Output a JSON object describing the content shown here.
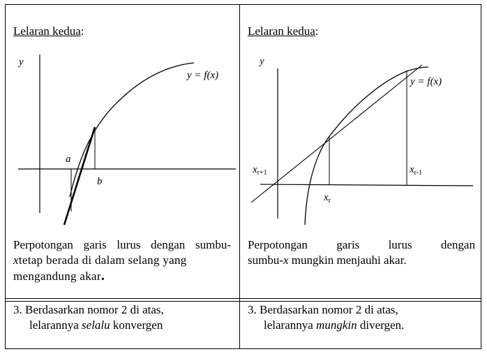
{
  "left": {
    "title": "Lelaran kedua",
    "title_colon": ":",
    "diagram": {
      "y_axis": "y",
      "curve_label": "y = f(x)",
      "point_a": "a",
      "point_b": "b"
    },
    "caption_line1": "Perpotongan garis lurus dengan sumbu-",
    "caption_line2_x": "x",
    "caption_line2_rest": "tetap berada di dalam selang yang",
    "caption_line3": "mengandung akar",
    "caption_line3_end": ".",
    "point3_line1": "3. Berdasarkan nomor 2 di atas,",
    "point3_line2_pre": "lelarannya ",
    "point3_line2_em": "selalu",
    "point3_line2_post": " konvergen"
  },
  "right": {
    "title": "Lelaran kedua",
    "title_colon": ":",
    "diagram": {
      "y_axis": "y",
      "curve_label": "y = f(x)",
      "x_r_plus": "x",
      "x_r_plus_sub": "r+1",
      "x_r_minus": "x",
      "x_r_minus_sub": "r-1",
      "x_r": "x",
      "x_r_sub": "r"
    },
    "caption_line1_words": [
      "Perpotongan",
      "garis",
      "lurus",
      "dengan"
    ],
    "caption_line2_pre": "sumbu-",
    "caption_line2_x": "x",
    "caption_line2_rest": " mungkin menjauhi akar.",
    "point3_line1": "3. Berdasarkan nomor 2 di atas,",
    "point3_line2_pre": "lelarannya ",
    "point3_line2_em": "mungkin",
    "point3_line2_post": " divergen."
  }
}
